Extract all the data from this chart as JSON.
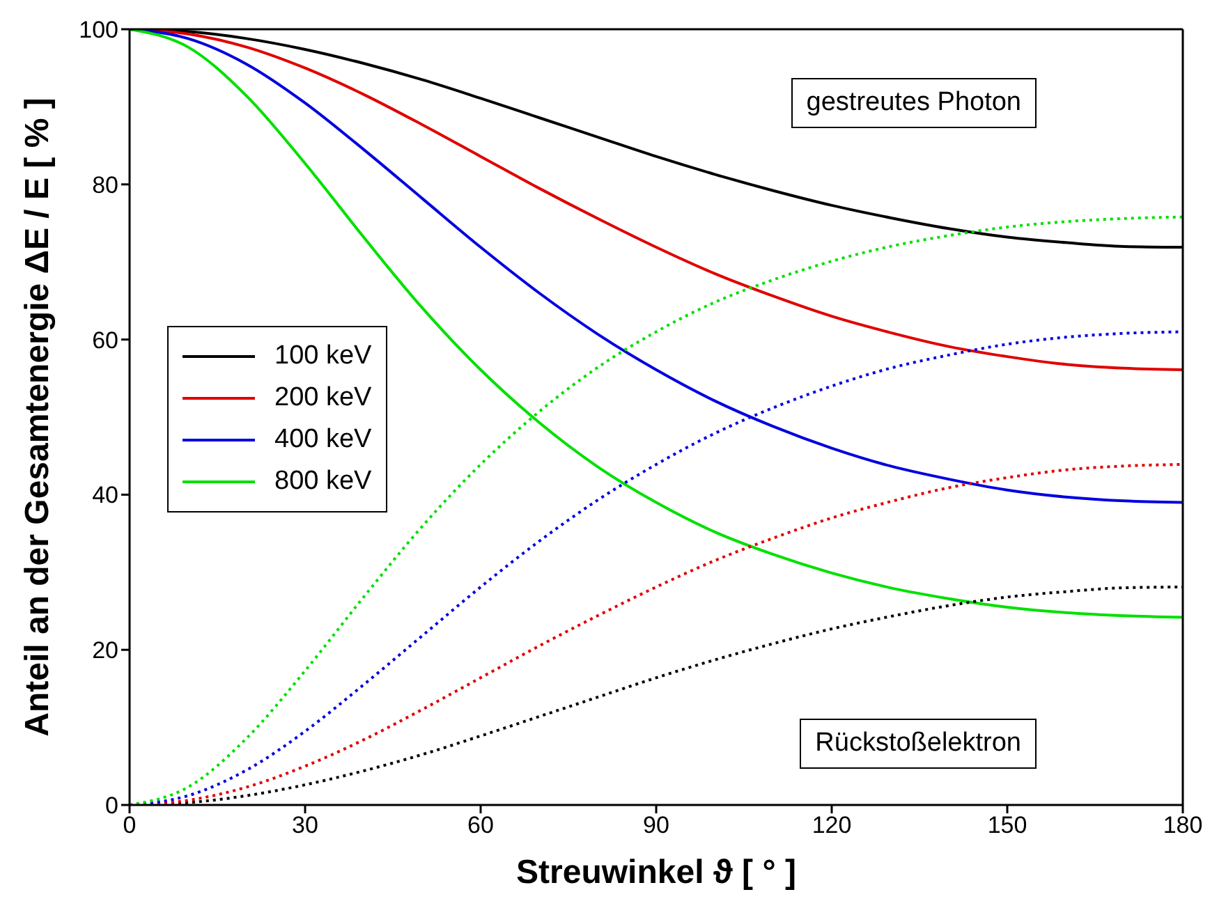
{
  "chart_data": {
    "type": "line",
    "xlabel": "Streuwinkel ϑ  [ ° ]",
    "ylabel": "Anteil an der Gesamtenergie ΔE / E  [ % ]",
    "x": [
      0,
      10,
      20,
      30,
      40,
      50,
      60,
      70,
      80,
      90,
      100,
      110,
      120,
      130,
      140,
      150,
      160,
      170,
      180
    ],
    "xlim": [
      0,
      180
    ],
    "xticks": [
      0,
      30,
      60,
      90,
      120,
      150,
      180
    ],
    "ylim": [
      0,
      100
    ],
    "yticks": [
      0,
      20,
      40,
      60,
      80,
      100
    ],
    "grid": false,
    "legend": "center left",
    "marker": "none",
    "series": [
      {
        "name": "100 keV",
        "color": "#000000",
        "line_style": "solid",
        "values": [
          100,
          99.7,
          98.8,
          97.4,
          95.6,
          93.5,
          91.1,
          88.6,
          86.1,
          83.6,
          81.3,
          79.2,
          77.3,
          75.7,
          74.3,
          73.2,
          72.5,
          72.0,
          71.9
        ]
      },
      {
        "name": "200 keV",
        "color": "#e00000",
        "line_style": "solid",
        "values": [
          100,
          99.4,
          97.7,
          95.0,
          91.6,
          87.7,
          83.6,
          79.5,
          75.6,
          71.9,
          68.5,
          65.6,
          63.0,
          60.9,
          59.1,
          57.8,
          56.8,
          56.3,
          56.1
        ]
      },
      {
        "name": "400 keV",
        "color": "#0000e0",
        "line_style": "solid",
        "values": [
          100,
          98.8,
          95.5,
          90.5,
          84.5,
          78.2,
          71.9,
          66.0,
          60.7,
          56.1,
          52.1,
          48.8,
          46.0,
          43.7,
          42.0,
          40.6,
          39.7,
          39.2,
          39.0
        ]
      },
      {
        "name": "800 keV",
        "color": "#00e000",
        "line_style": "solid",
        "values": [
          100,
          97.7,
          91.4,
          82.7,
          73.2,
          64.1,
          56.1,
          49.3,
          43.6,
          39.0,
          35.2,
          32.3,
          29.9,
          28.0,
          26.6,
          25.5,
          24.8,
          24.4,
          24.2
        ]
      },
      {
        "color": "#000000",
        "line_style": "dotted",
        "values": [
          0,
          0.3,
          1.2,
          2.6,
          4.4,
          6.5,
          8.9,
          11.4,
          13.9,
          16.4,
          18.7,
          20.8,
          22.7,
          24.3,
          25.7,
          26.8,
          27.5,
          28.0,
          28.1
        ]
      },
      {
        "color": "#e00000",
        "line_style": "dotted",
        "values": [
          0,
          0.6,
          2.3,
          5.0,
          8.4,
          12.3,
          16.4,
          20.5,
          24.4,
          28.1,
          31.5,
          34.4,
          37.0,
          39.1,
          40.9,
          42.2,
          43.2,
          43.7,
          43.9
        ]
      },
      {
        "color": "#0000e0",
        "line_style": "dotted",
        "values": [
          0,
          1.2,
          4.5,
          9.5,
          15.5,
          21.8,
          28.1,
          34.0,
          39.3,
          43.9,
          47.9,
          51.2,
          54.0,
          56.3,
          58.0,
          59.4,
          60.3,
          60.8,
          61.0
        ]
      },
      {
        "color": "#00e000",
        "line_style": "dotted",
        "values": [
          0,
          2.3,
          8.6,
          17.3,
          26.8,
          35.9,
          43.9,
          50.7,
          56.4,
          61.0,
          64.8,
          67.7,
          70.1,
          72.0,
          73.4,
          74.5,
          75.2,
          75.6,
          75.8
        ]
      }
    ],
    "annotations": [
      "gestreutes Photon",
      "Rückstoßelektron"
    ]
  }
}
